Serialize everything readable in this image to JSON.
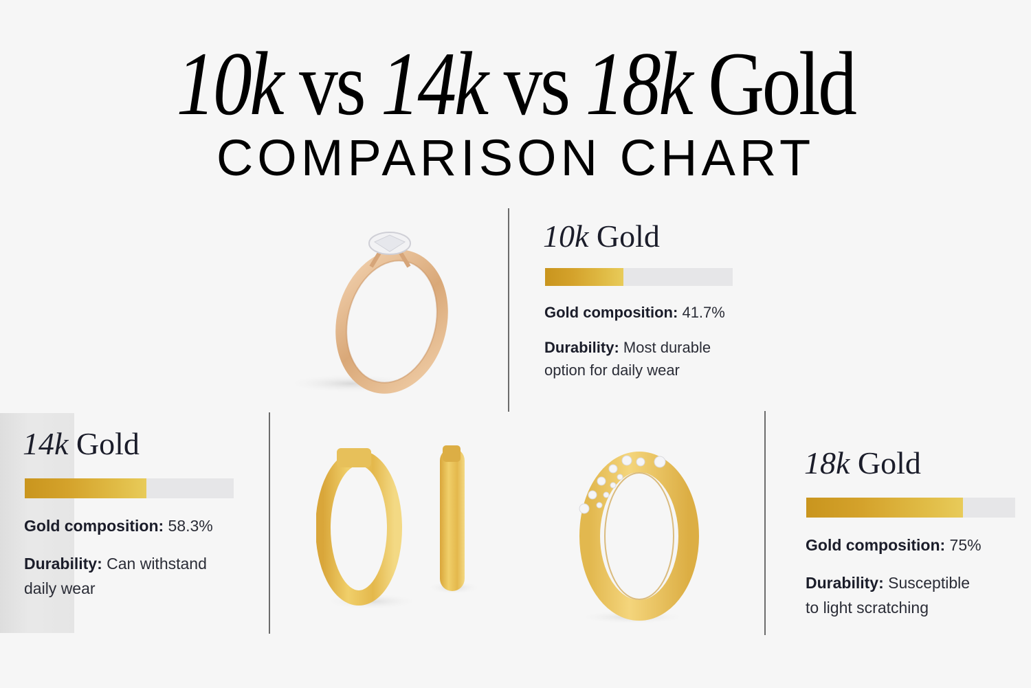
{
  "header": {
    "title_parts": [
      "10k",
      "vs",
      "14k",
      "vs",
      "18k",
      "Gold"
    ],
    "subtitle": "COMPARISON CHART"
  },
  "cards": [
    {
      "karat": "10k",
      "metal": "Gold",
      "composition_label": "Gold composition:",
      "composition_value": "41.7%",
      "durability_label": "Durability:",
      "durability_value": "Most durable option for daily wear",
      "durability_line1": "Most durable",
      "durability_line2": "option for daily wear",
      "percent": 41.7,
      "product": "solitaire-engagement-ring"
    },
    {
      "karat": "14k",
      "metal": "Gold",
      "composition_label": "Gold composition:",
      "composition_value": "58.3%",
      "durability_label": "Durability:",
      "durability_value": "Can withstand daily wear",
      "durability_line1": "Can withstand",
      "durability_line2": "daily wear",
      "percent": 58.3,
      "product": "hoop-earrings"
    },
    {
      "karat": "18k",
      "metal": "Gold",
      "composition_label": "Gold composition:",
      "composition_value": "75%",
      "durability_label": "Durability:",
      "durability_value": "Susceptible to light scratching",
      "durability_line1": "Susceptible",
      "durability_line2": "to light scratching",
      "percent": 75,
      "product": "diamond-crossover-ring"
    }
  ],
  "colors": {
    "background": "#f6f6f6",
    "gold_dark": "#c9951e",
    "gold_light": "#e8cb5a",
    "bar_track": "#e6e6e8",
    "text": "#1b1d2a",
    "divider": "#6b6b6b"
  },
  "chart_data": {
    "type": "bar",
    "orientation": "horizontal",
    "title": "10k vs 14k vs 18k Gold",
    "subtitle": "COMPARISON CHART",
    "categories": [
      "10k Gold",
      "14k Gold",
      "18k Gold"
    ],
    "values": [
      41.7,
      58.3,
      75
    ],
    "value_labels": [
      "41.7%",
      "58.3%",
      "75%"
    ],
    "metric": "Gold composition (%)",
    "xlim": [
      0,
      100
    ],
    "annotations": [
      {
        "category": "10k Gold",
        "label": "Durability",
        "text": "Most durable option for daily wear"
      },
      {
        "category": "14k Gold",
        "label": "Durability",
        "text": "Can withstand daily wear"
      },
      {
        "category": "18k Gold",
        "label": "Durability",
        "text": "Susceptible to light scratching"
      }
    ],
    "grid": false,
    "legend": "none"
  }
}
